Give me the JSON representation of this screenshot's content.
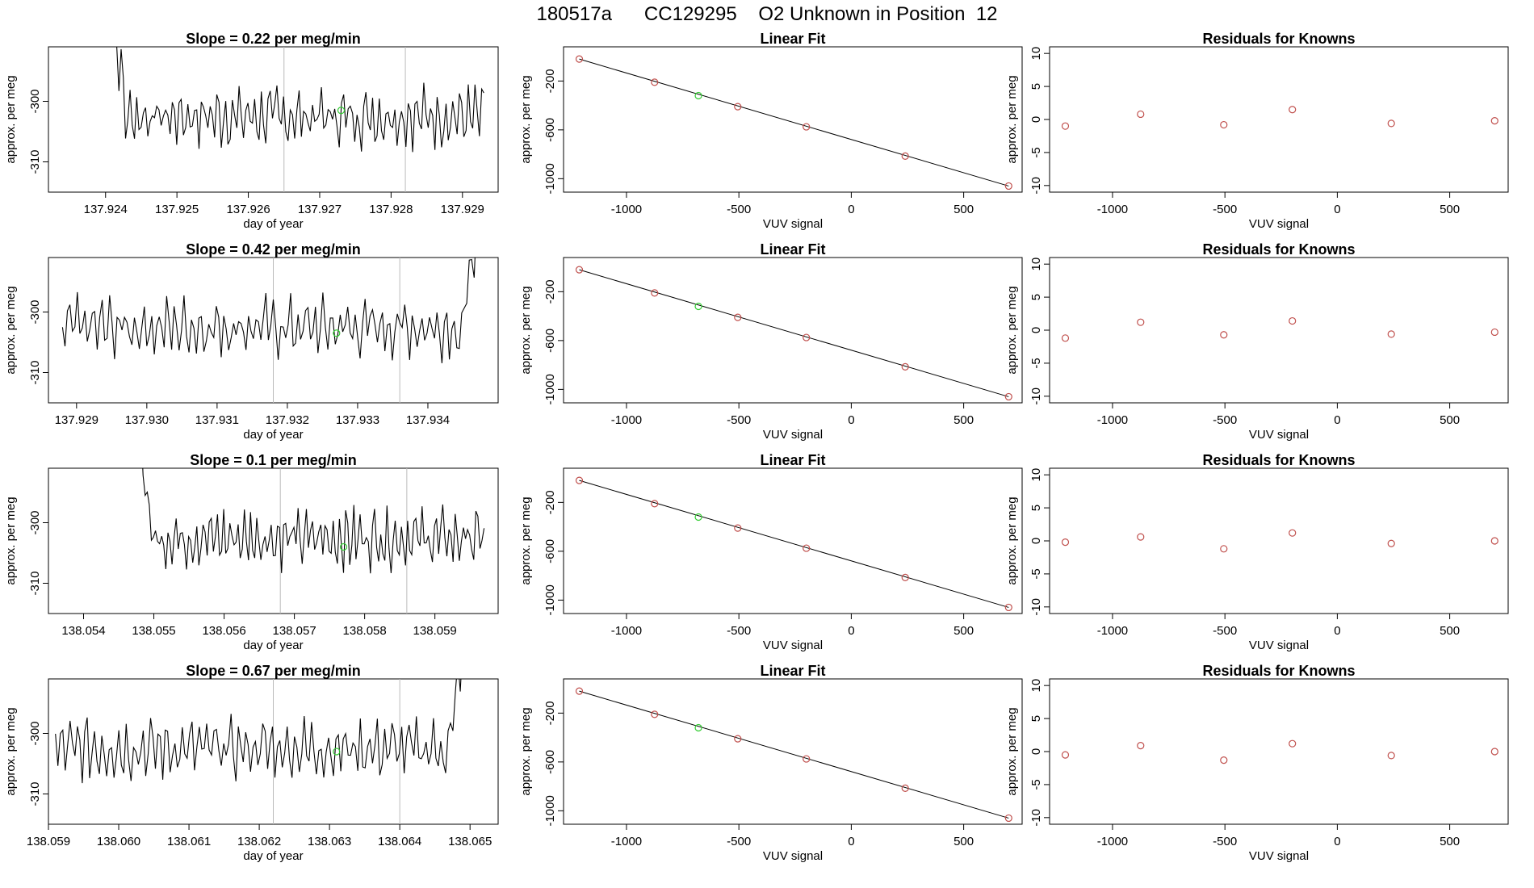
{
  "page_title": "180517a      CC129295    O2 Unknown in Position  12",
  "colors": {
    "trace": "#000000",
    "knowns": "#c0504d",
    "unknown": "#33cc33",
    "vline": "#bbbbbb",
    "axis": "#000000"
  },
  "chart_data": [
    {
      "type": "line",
      "title": "Slope =  0.22  per meg/min",
      "xlabel": "day of year",
      "ylabel": "approx. per meg",
      "xlim": [
        137.9232,
        137.9295
      ],
      "ylim": [
        -315,
        -291
      ],
      "xticks": [
        "137.924",
        "137.925",
        "137.926",
        "137.927",
        "137.928",
        "137.929"
      ],
      "yticks": [
        "-300",
        "-310"
      ],
      "vlines": [
        137.9265,
        137.9282
      ],
      "start": 137.924,
      "end": 137.9293,
      "spike": "start",
      "unknown_point": {
        "x": 137.9273,
        "y": -301.5
      }
    },
    {
      "type": "scatter",
      "title": "Linear Fit",
      "xlabel": "VUV signal",
      "ylabel": "approx. per meg",
      "xlim": [
        -1280,
        760
      ],
      "ylim": [
        -1110,
        80
      ],
      "xticks": [
        "-1000",
        "-500",
        "0",
        "500"
      ],
      "yticks": [
        "-200",
        "-600",
        "-1000"
      ],
      "knowns": {
        "x": [
          -1210,
          -875,
          -505,
          -200,
          240,
          700
        ],
        "y": [
          -20,
          -210,
          -410,
          -575,
          -815,
          -1060
        ]
      },
      "unknown": {
        "x": -680,
        "y": -320
      },
      "fit_line": {
        "x": [
          -1210,
          700
        ],
        "y": [
          -20,
          -1060
        ]
      }
    },
    {
      "type": "scatter",
      "title": "Residuals for Knowns",
      "xlabel": "VUV signal",
      "ylabel": "approx. per meg",
      "xlim": [
        -1280,
        760
      ],
      "ylim": [
        -11,
        11
      ],
      "xticks": [
        "-1000",
        "-500",
        "0",
        "500"
      ],
      "yticks": [
        "10",
        "5",
        "0",
        "-5",
        "-10"
      ],
      "points": {
        "x": [
          -1210,
          -875,
          -505,
          -200,
          240,
          700
        ],
        "y": [
          -1.0,
          0.8,
          -0.8,
          1.5,
          -0.6,
          -0.2
        ]
      }
    },
    {
      "type": "line",
      "title": "Slope =  0.42  per meg/min",
      "xlabel": "day of year",
      "ylabel": "approx. per meg",
      "xlim": [
        137.9286,
        137.935
      ],
      "ylim": [
        -315,
        -291
      ],
      "xticks": [
        "137.929",
        "137.930",
        "137.931",
        "137.932",
        "137.933",
        "137.934"
      ],
      "yticks": [
        "-300",
        "-310"
      ],
      "vlines": [
        137.9318,
        137.9336
      ],
      "start": 137.9288,
      "end": 137.9348,
      "spike": "end",
      "unknown_point": {
        "x": 137.9327,
        "y": -303.5
      }
    },
    {
      "type": "scatter",
      "title": "Linear Fit",
      "xlabel": "VUV signal",
      "ylabel": "approx. per meg",
      "xlim": [
        -1280,
        760
      ],
      "ylim": [
        -1110,
        80
      ],
      "xticks": [
        "-1000",
        "-500",
        "0",
        "500"
      ],
      "yticks": [
        "-200",
        "-600",
        "-1000"
      ],
      "knowns": {
        "x": [
          -1210,
          -875,
          -505,
          -200,
          240,
          700
        ],
        "y": [
          -20,
          -210,
          -410,
          -575,
          -815,
          -1060
        ]
      },
      "unknown": {
        "x": -680,
        "y": -320
      },
      "fit_line": {
        "x": [
          -1210,
          700
        ],
        "y": [
          -20,
          -1060
        ]
      }
    },
    {
      "type": "scatter",
      "title": "Residuals for Knowns",
      "xlabel": "VUV signal",
      "ylabel": "approx. per meg",
      "xlim": [
        -1280,
        760
      ],
      "ylim": [
        -11,
        11
      ],
      "xticks": [
        "-1000",
        "-500",
        "0",
        "500"
      ],
      "yticks": [
        "10",
        "5",
        "0",
        "-5",
        "-10"
      ],
      "points": {
        "x": [
          -1210,
          -875,
          -505,
          -200,
          240,
          700
        ],
        "y": [
          -1.2,
          1.2,
          -0.7,
          1.4,
          -0.6,
          -0.3
        ]
      }
    },
    {
      "type": "line",
      "title": "Slope =  0.1  per meg/min",
      "xlabel": "day of year",
      "ylabel": "approx. per meg",
      "xlim": [
        138.0535,
        138.0599
      ],
      "ylim": [
        -315,
        -291
      ],
      "xticks": [
        "138.054",
        "138.055",
        "138.056",
        "138.057",
        "138.058",
        "138.059"
      ],
      "yticks": [
        "-300",
        "-310"
      ],
      "vlines": [
        138.0568,
        138.0586
      ],
      "start": 138.0547,
      "end": 138.0597,
      "spike": "start",
      "unknown_point": {
        "x": 138.0577,
        "y": -304
      }
    },
    {
      "type": "scatter",
      "title": "Linear Fit",
      "xlabel": "VUV signal",
      "ylabel": "approx. per meg",
      "xlim": [
        -1280,
        760
      ],
      "ylim": [
        -1110,
        80
      ],
      "xticks": [
        "-1000",
        "-500",
        "0",
        "500"
      ],
      "yticks": [
        "-200",
        "-600",
        "-1000"
      ],
      "knowns": {
        "x": [
          -1210,
          -875,
          -505,
          -200,
          240,
          700
        ],
        "y": [
          -20,
          -210,
          -410,
          -575,
          -815,
          -1060
        ]
      },
      "unknown": {
        "x": -680,
        "y": -320
      },
      "fit_line": {
        "x": [
          -1210,
          700
        ],
        "y": [
          -20,
          -1060
        ]
      }
    },
    {
      "type": "scatter",
      "title": "Residuals for Knowns",
      "xlabel": "VUV signal",
      "ylabel": "approx. per meg",
      "xlim": [
        -1280,
        760
      ],
      "ylim": [
        -11,
        11
      ],
      "xticks": [
        "-1000",
        "-500",
        "0",
        "500"
      ],
      "yticks": [
        "10",
        "5",
        "0",
        "-5",
        "-10"
      ],
      "points": {
        "x": [
          -1210,
          -875,
          -505,
          -200,
          240,
          700
        ],
        "y": [
          -0.2,
          0.6,
          -1.2,
          1.2,
          -0.4,
          0.0
        ]
      }
    },
    {
      "type": "line",
      "title": "Slope =  0.67  per meg/min",
      "xlabel": "day of year",
      "ylabel": "approx. per meg",
      "xlim": [
        138.059,
        138.0654
      ],
      "ylim": [
        -315,
        -291
      ],
      "xticks": [
        "138.059",
        "138.060",
        "138.061",
        "138.062",
        "138.063",
        "138.064",
        "138.065"
      ],
      "yticks": [
        "-300",
        "-310"
      ],
      "vlines": [
        138.0622,
        138.064
      ],
      "start": 138.0591,
      "end": 138.065,
      "spike": "end",
      "unknown_point": {
        "x": 138.0631,
        "y": -303
      }
    },
    {
      "type": "scatter",
      "title": "Linear Fit",
      "xlabel": "VUV signal",
      "ylabel": "approx. per meg",
      "xlim": [
        -1280,
        760
      ],
      "ylim": [
        -1110,
        80
      ],
      "xticks": [
        "-1000",
        "-500",
        "0",
        "500"
      ],
      "yticks": [
        "-200",
        "-600",
        "-1000"
      ],
      "knowns": {
        "x": [
          -1210,
          -875,
          -505,
          -200,
          240,
          700
        ],
        "y": [
          -20,
          -210,
          -410,
          -575,
          -815,
          -1060
        ]
      },
      "unknown": {
        "x": -680,
        "y": -320
      },
      "fit_line": {
        "x": [
          -1210,
          700
        ],
        "y": [
          -20,
          -1060
        ]
      }
    },
    {
      "type": "scatter",
      "title": "Residuals for Knowns",
      "xlabel": "VUV signal",
      "ylabel": "approx. per meg",
      "xlim": [
        -1280,
        760
      ],
      "ylim": [
        -11,
        11
      ],
      "xticks": [
        "-1000",
        "-500",
        "0",
        "500"
      ],
      "yticks": [
        "10",
        "5",
        "0",
        "-5",
        "-10"
      ],
      "points": {
        "x": [
          -1210,
          -875,
          -505,
          -200,
          240,
          700
        ],
        "y": [
          -0.5,
          0.9,
          -1.3,
          1.2,
          -0.6,
          0.0
        ]
      }
    }
  ]
}
